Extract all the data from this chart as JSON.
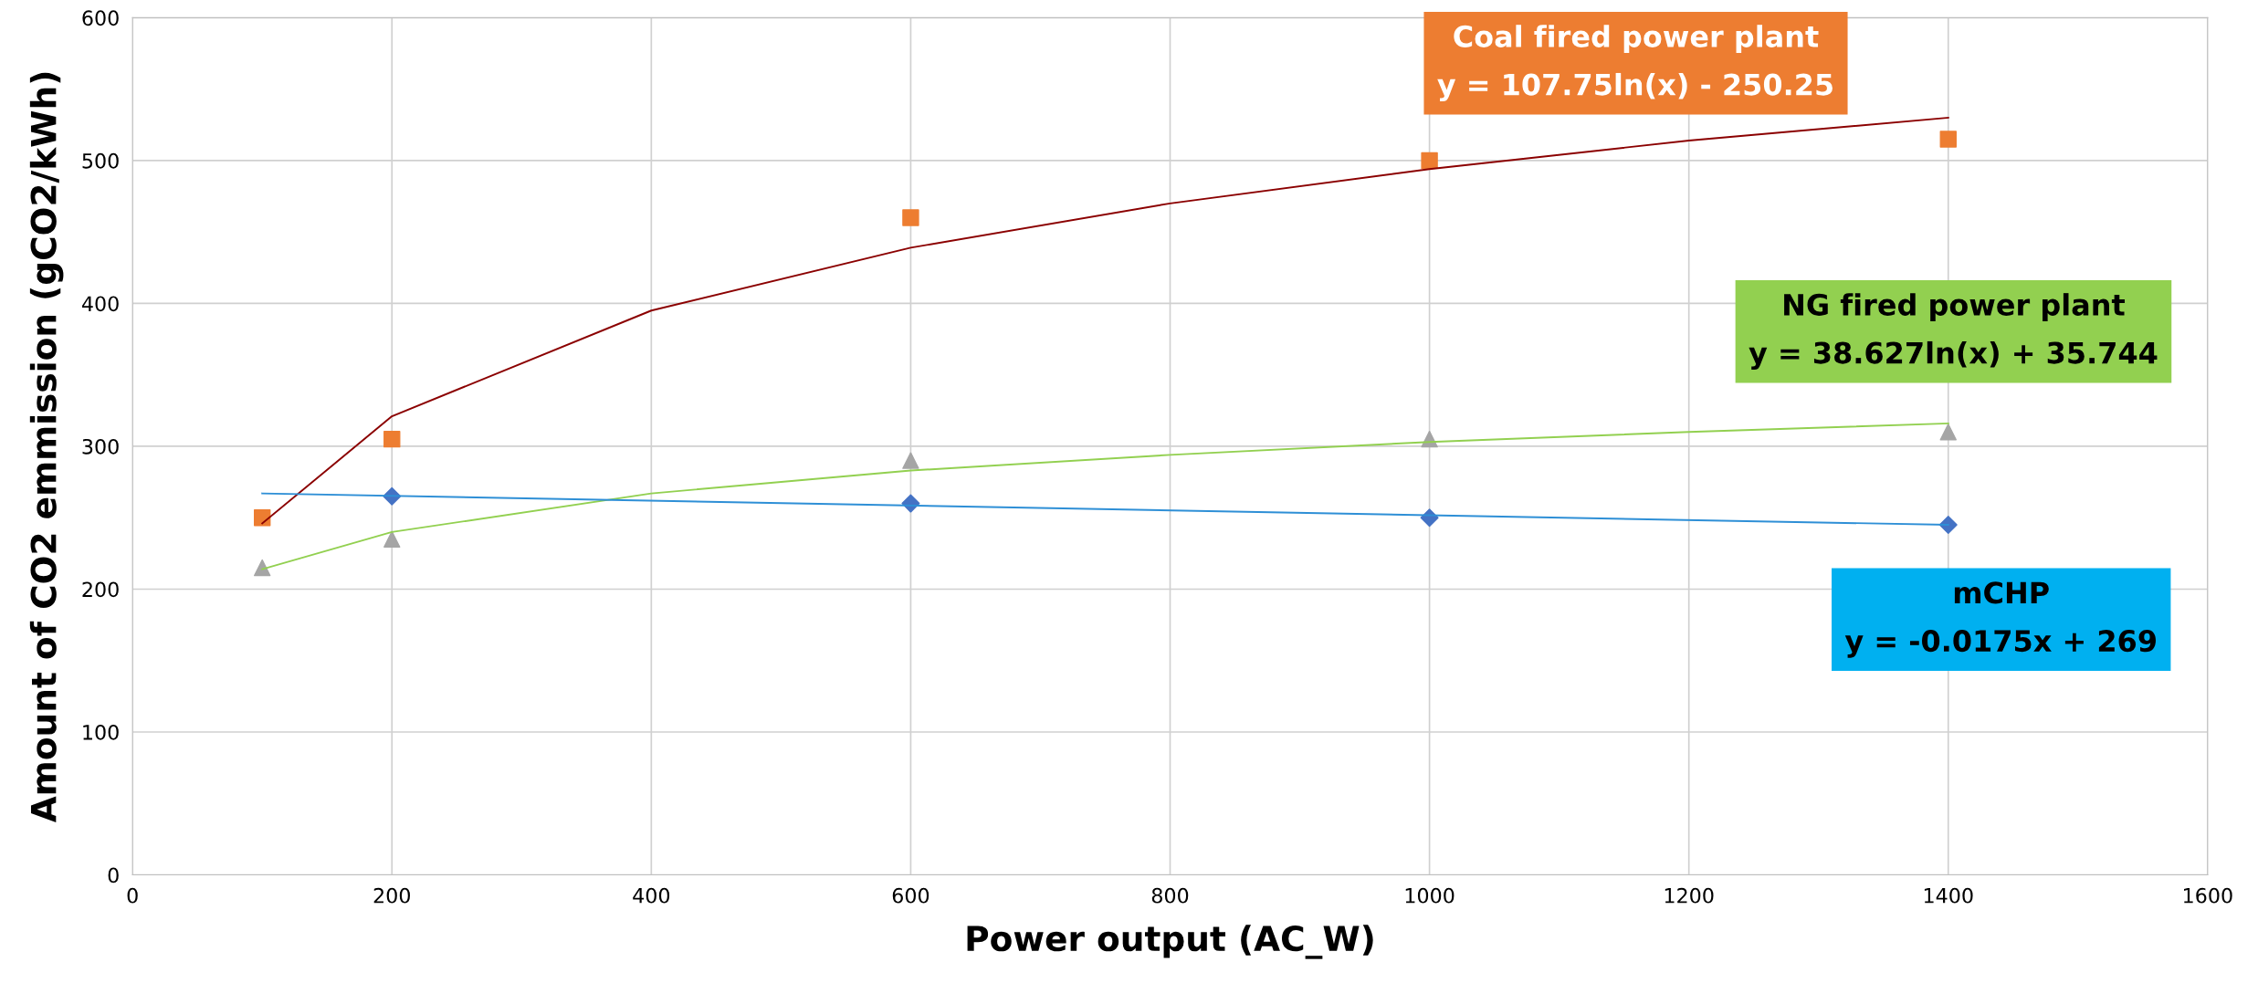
{
  "chart_data": {
    "type": "scatter",
    "xlabel": "Power output (AC_W)",
    "ylabel": "Amount of CO2 emmission (gCO2/kWh)",
    "xlim": [
      0,
      1600
    ],
    "xticks": [
      0,
      200,
      400,
      600,
      800,
      1000,
      1200,
      1400,
      1600
    ],
    "ylim": [
      0,
      600
    ],
    "yticks": [
      0,
      100,
      200,
      300,
      400,
      500,
      600
    ],
    "grid": true,
    "series": [
      {
        "marker": "square",
        "color": "#ed7d31",
        "x": [
          100,
          200,
          600,
          1000,
          1400
        ],
        "values": [
          250,
          305,
          460,
          500,
          515
        ]
      },
      {
        "marker": "triangle",
        "color": "#a5a5a5",
        "x": [
          100,
          200,
          600,
          1000,
          1400
        ],
        "values": [
          215,
          235,
          290,
          305,
          310
        ]
      },
      {
        "marker": "diamond",
        "color": "#4472c4",
        "x": [
          200,
          600,
          1000,
          1400
        ],
        "values": [
          265,
          260,
          250,
          245
        ]
      },
      {
        "type": "line",
        "marker": "none",
        "color": "#8b0000",
        "x": [
          100,
          200,
          400,
          600,
          800,
          1000,
          1200,
          1400
        ],
        "values": [
          246,
          321,
          395,
          439,
          470,
          494,
          514,
          530
        ]
      },
      {
        "type": "line",
        "marker": "none",
        "color": "#92d050",
        "x": [
          100,
          200,
          400,
          600,
          800,
          1000,
          1200,
          1400
        ],
        "values": [
          214,
          240,
          267,
          283,
          294,
          303,
          310,
          316
        ]
      },
      {
        "type": "line",
        "marker": "none",
        "color": "#2e8fd6",
        "x": [
          100,
          1400
        ],
        "values": [
          267,
          245
        ]
      }
    ],
    "annotations": [
      "Coal fired power plant\ny = 107.75ln(x) - 250.25",
      "NG fired power plant\ny = 38.627ln(x) + 35.744",
      "mCHP\ny = -0.0175x + 269"
    ]
  }
}
